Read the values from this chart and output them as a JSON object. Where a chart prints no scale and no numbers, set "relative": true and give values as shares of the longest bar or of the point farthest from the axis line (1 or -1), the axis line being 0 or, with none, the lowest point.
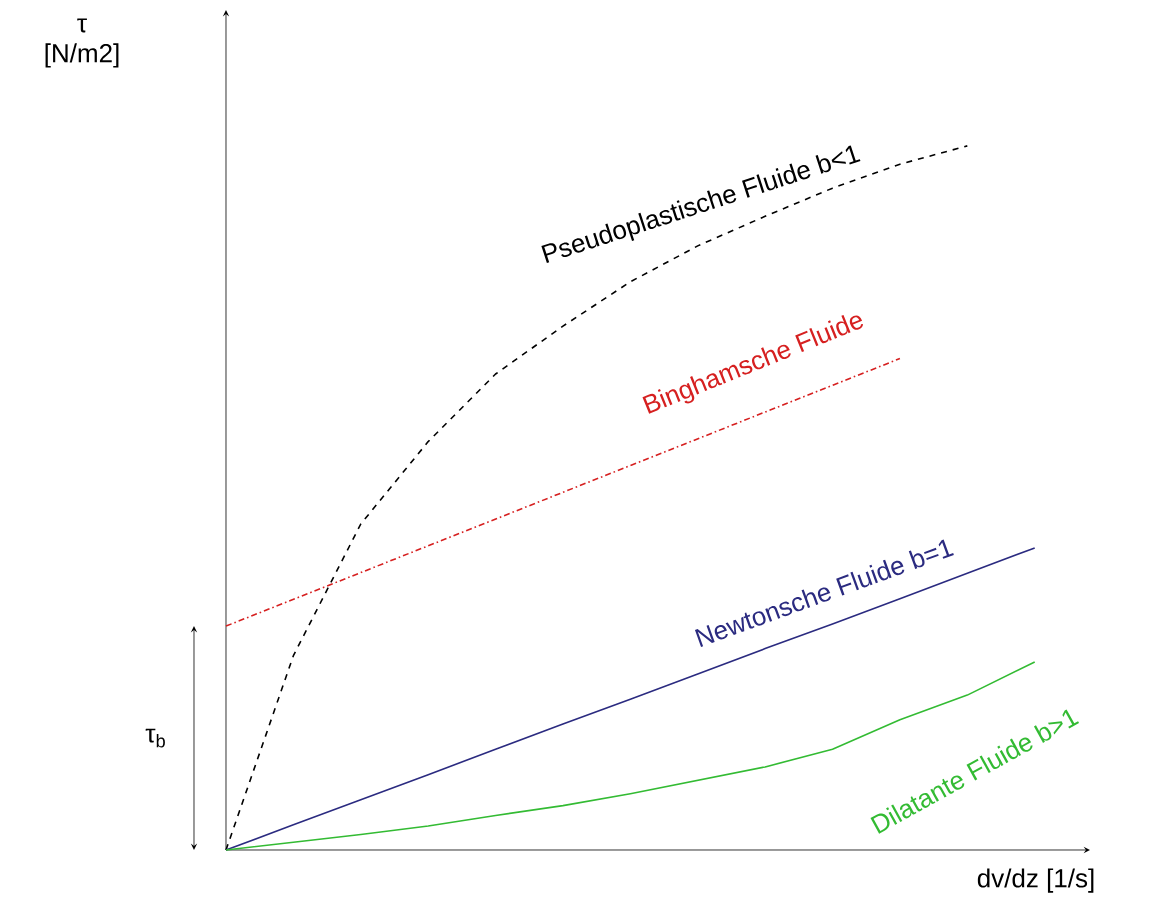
{
  "chart_data": {
    "type": "line",
    "relative": true,
    "xlabel": "dv/dz [1/s]",
    "categories": [
      null,
      null,
      null,
      null,
      null,
      null,
      null,
      null,
      null,
      null,
      null,
      null,
      null
    ],
    "series": [
      {
        "name": "Pseudoplastische Fluide  b<1",
        "color": "#000000",
        "line_style": "dashed",
        "values": [
          0,
          0.276,
          0.463,
          0.58,
          0.676,
          0.744,
          0.807,
          0.858,
          0.9,
          0.94,
          0.974,
          1,
          null
        ]
      },
      {
        "name": "Binghamsche Fluide",
        "color": "#d62020",
        "line_style": "dashdot",
        "values": [
          0.318,
          0.356,
          0.394,
          0.432,
          0.47,
          0.508,
          0.546,
          0.584,
          0.622,
          0.66,
          0.698,
          null,
          null
        ]
      },
      {
        "name": "Newtonsche Fluide  b=1",
        "color": "#2b2b80",
        "line_style": "solid",
        "values": [
          0,
          0.0357,
          0.0714,
          0.107,
          0.143,
          0.179,
          0.214,
          0.25,
          0.286,
          0.321,
          0.357,
          0.393,
          0.429
        ]
      },
      {
        "name": "Dilatante Fluide      b>1",
        "color": "#33bb33",
        "line_style": "solid",
        "values": [
          0,
          0.011,
          0.022,
          0.034,
          0.049,
          0.063,
          0.08,
          0.099,
          0.118,
          0.143,
          0.185,
          0.22,
          0.267
        ]
      }
    ],
    "annotations": [
      "τ [N/m2]",
      "τ$_{b}$"
    ]
  }
}
